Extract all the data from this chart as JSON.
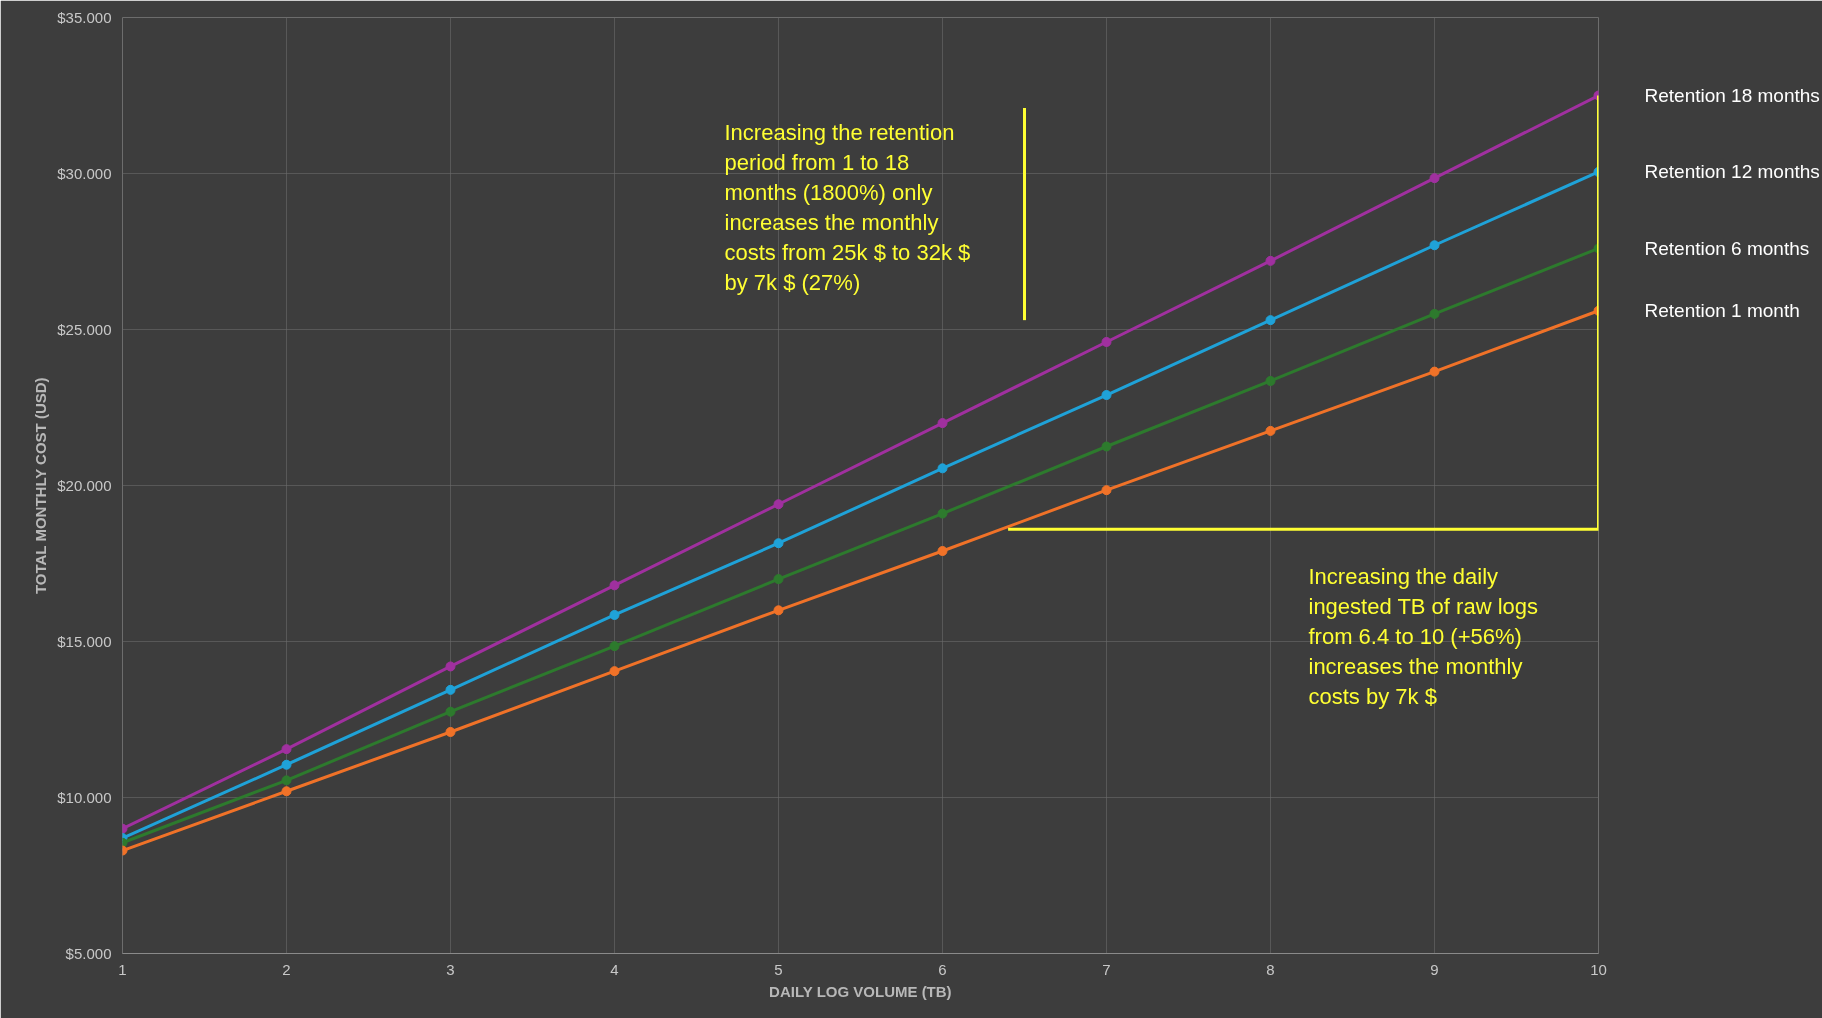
{
  "chart_data": {
    "type": "line",
    "xlabel": "DAILY LOG VOLUME (TB)",
    "ylabel": "TOTAL MONTHLY COST (USD)",
    "x": [
      1,
      2,
      3,
      4,
      5,
      6,
      7,
      8,
      9,
      10
    ],
    "series": [
      {
        "name": "Retention 18 months",
        "color": "#a0309f",
        "values": [
          9.0,
          11.55,
          14.2,
          16.8,
          19.4,
          22.0,
          24.6,
          27.2,
          29.85,
          32.5
        ]
      },
      {
        "name": "Retention 12 months",
        "color": "#1fa2d8",
        "values": [
          8.7,
          11.05,
          13.45,
          15.85,
          18.15,
          20.55,
          22.9,
          25.3,
          27.7,
          30.05
        ]
      },
      {
        "name": "Retention 6 months",
        "color": "#2d7a2d",
        "values": [
          8.55,
          10.55,
          12.75,
          14.85,
          17.0,
          19.1,
          21.25,
          23.35,
          25.5,
          27.6
        ]
      },
      {
        "name": "Retention 1 month",
        "color": "#f07228",
        "values": [
          8.3,
          10.2,
          12.1,
          14.05,
          16.0,
          17.9,
          19.85,
          21.75,
          23.65,
          25.6
        ]
      },
      {
        "color": "#ffff33",
        "marker": "none",
        "x": [
          6.5,
          6.5
        ],
        "values": [
          25.3,
          32.1
        ]
      },
      {
        "color": "#ffff33",
        "marker": "none",
        "x": [
          6.4,
          10,
          10
        ],
        "values": [
          18.6,
          18.6,
          32.5
        ]
      }
    ],
    "xlim": [
      1,
      10
    ],
    "xticks": [
      1,
      2,
      3,
      4,
      5,
      6,
      7,
      8,
      9,
      10
    ],
    "ylim": [
      5,
      35
    ],
    "yticks": [
      {
        "value": 5,
        "label": "$5.000"
      },
      {
        "value": 10,
        "label": "$10.000"
      },
      {
        "value": 15,
        "label": "$15.000"
      },
      {
        "value": 20,
        "label": "$20.000"
      },
      {
        "value": 25,
        "label": "$25.000"
      },
      {
        "value": 30,
        "label": "$30.000"
      },
      {
        "value": 35,
        "label": "$35.000"
      }
    ],
    "grid": true,
    "marker": "circle",
    "line_style": "solid",
    "annotations": [
      "Increasing the retention\nperiod from 1 to 18\nmonths (1800%) only\nincreases the monthly\ncosts from 25k $ to  32k $\nby 7k $ (27%)",
      "Increasing the daily\ningested TB of raw logs\nfrom 6.4 to 10 (+56%)\nincreases the monthly\ncosts by 7k $"
    ]
  }
}
